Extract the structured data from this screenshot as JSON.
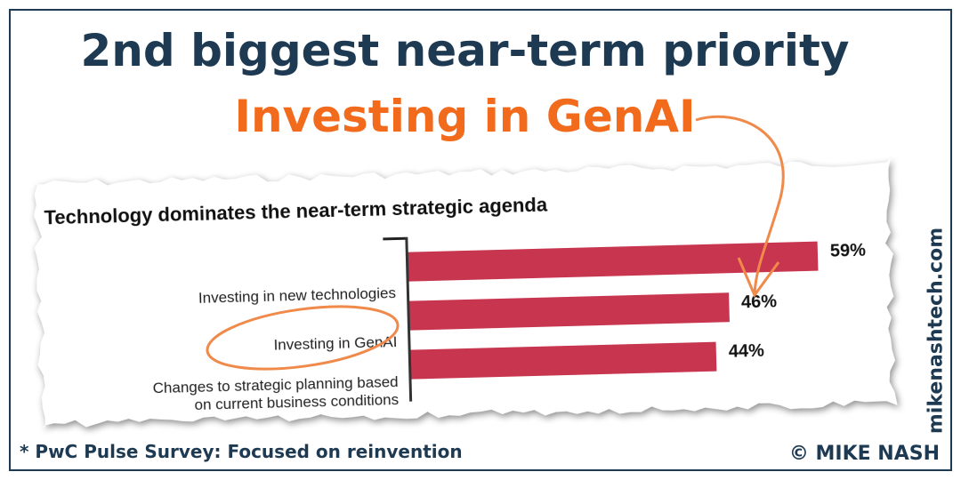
{
  "header": {
    "title": "2nd biggest near-term priority",
    "subtitle": "Investing in GenAI"
  },
  "chart_data": {
    "type": "bar",
    "title": "Technology dominates the near-term strategic agenda",
    "categories": [
      "Investing in new technologies",
      "Investing in GenAI",
      "Changes to strategic planning based\non current business conditions"
    ],
    "values": [
      59,
      46,
      44
    ],
    "value_labels": [
      "59%",
      "46%",
      "44%"
    ],
    "color": "#c8354f"
  },
  "footer": {
    "source": "* PwC Pulse Survey: Focused on reinvention",
    "credit": "© MIKE NASH",
    "website": "mikenashtech.com"
  }
}
